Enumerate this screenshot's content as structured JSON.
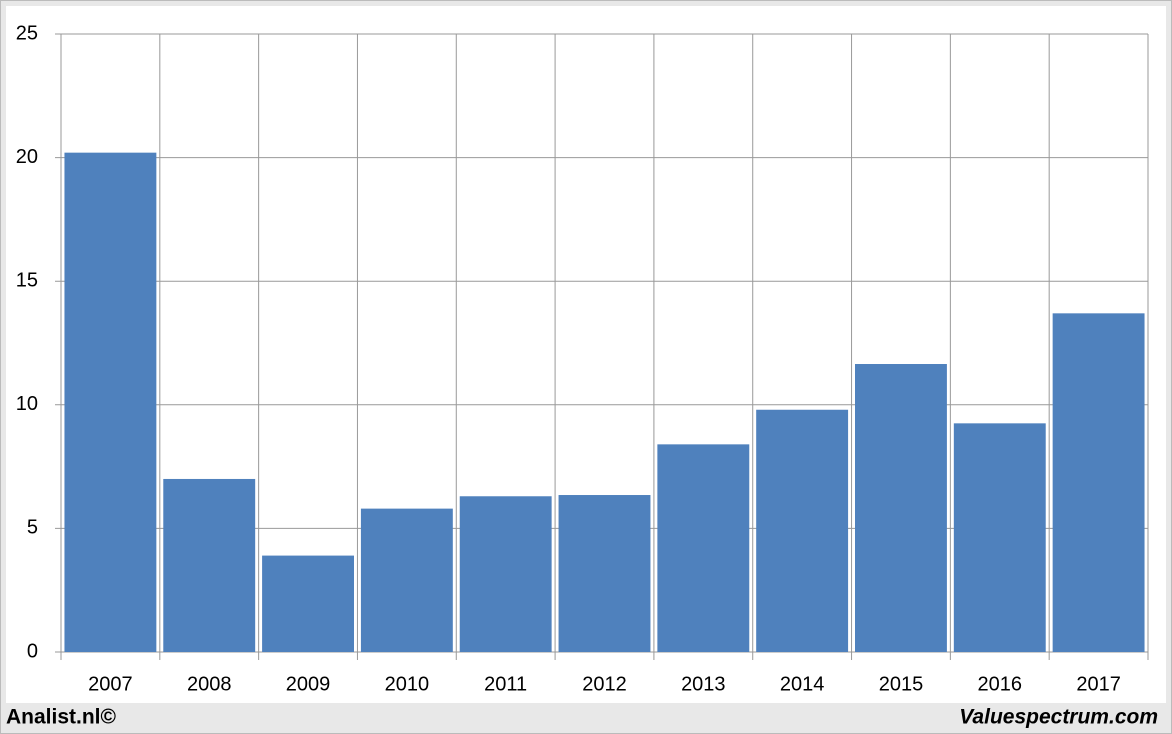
{
  "chart_data": {
    "type": "bar",
    "categories": [
      "2007",
      "2008",
      "2009",
      "2010",
      "2011",
      "2012",
      "2013",
      "2014",
      "2015",
      "2016",
      "2017"
    ],
    "values": [
      20.2,
      7.0,
      3.9,
      5.8,
      6.3,
      6.35,
      8.4,
      9.8,
      11.65,
      9.25,
      13.7
    ],
    "color": "#4f81bd",
    "ylim": [
      0,
      25
    ],
    "yticks": [
      0,
      5,
      10,
      15,
      20,
      25
    ],
    "grid": true
  },
  "footer": {
    "left": "Analist.nl©",
    "right": "Valuespectrum.com"
  }
}
